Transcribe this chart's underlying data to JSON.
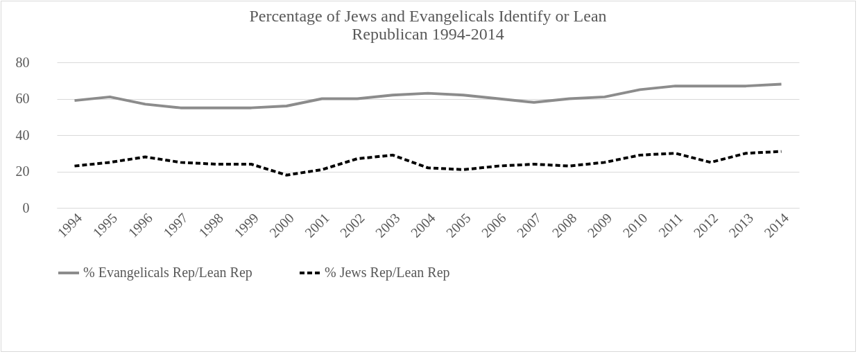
{
  "chart_data": {
    "type": "line",
    "title": "Percentage of Jews and Evangelicals Identify or Lean Republican 1994-2014",
    "categories": [
      "1994",
      "1995",
      "1996",
      "1997",
      "1998",
      "1999",
      "2000",
      "2001",
      "2002",
      "2003",
      "2004",
      "2005",
      "2006",
      "2007",
      "2008",
      "2009",
      "2010",
      "2011",
      "2012",
      "2013",
      "2014"
    ],
    "series": [
      {
        "name": "% Evangelicals Rep/Lean Rep",
        "color": "#8c8c8c",
        "line_style": "solid",
        "values": [
          59,
          61,
          57,
          55,
          55,
          55,
          56,
          60,
          60,
          62,
          63,
          62,
          60,
          58,
          60,
          61,
          65,
          67,
          67,
          67,
          68
        ]
      },
      {
        "name": "% Jews Rep/Lean Rep",
        "color": "#000000",
        "line_style": "dashed",
        "values": [
          23,
          25,
          28,
          25,
          24,
          24,
          18,
          21,
          27,
          29,
          22,
          21,
          23,
          24,
          23,
          25,
          29,
          30,
          25,
          30,
          31
        ]
      }
    ],
    "ylim": [
      0,
      80
    ],
    "yticks": [
      0,
      20,
      40,
      60,
      80
    ],
    "grid": "y",
    "legend": "bottom"
  }
}
